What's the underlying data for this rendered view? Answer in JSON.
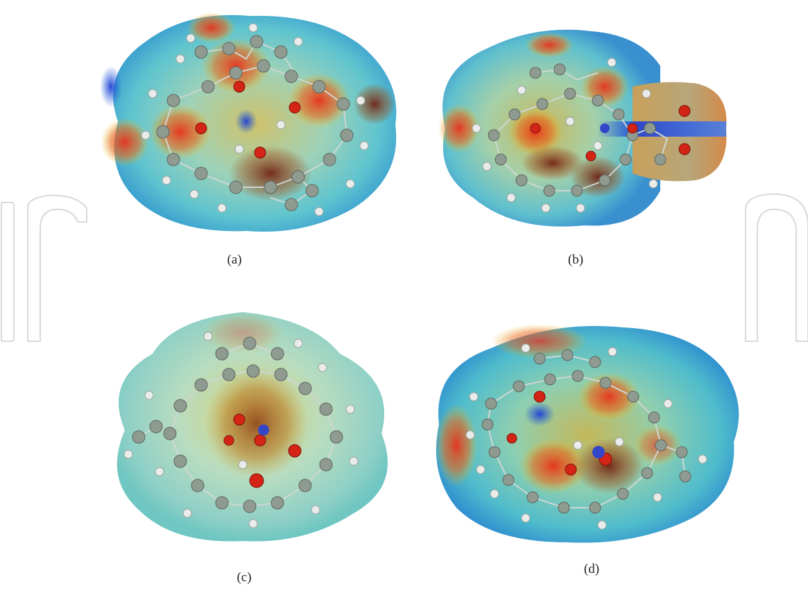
{
  "captions": {
    "a": "(a)",
    "b": "(b)",
    "c": "(c)",
    "d": "(d)"
  },
  "surface_colors": {
    "negative": "#e8301a",
    "deep_negative": "#7a1c0c",
    "mid": "#d8d04a",
    "neutral": "#7fd3cf",
    "positive": "#1e5fd6",
    "watermark": "#d9d9d9"
  },
  "atom_colors": {
    "carbon": "#8f9a90",
    "hydrogen": "#e9ecea",
    "oxygen": "#d42416",
    "nitrogen": "#3346c8",
    "bond": "#cfd6d2"
  }
}
